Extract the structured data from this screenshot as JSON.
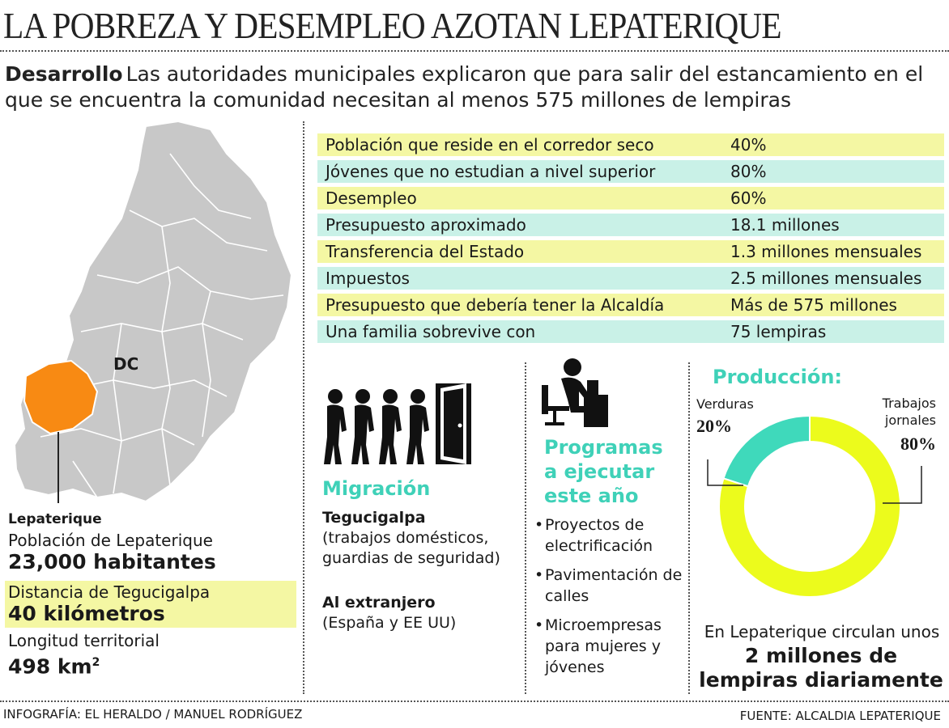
{
  "header": {
    "title": "LA POBREZA Y DESEMPLEO AZOTAN  LEPATERIQUE",
    "lead_label": "Desarrollo",
    "lead_text": "Las autoridades municipales explicaron que para salir del estancamiento en el que se encuentra la comunidad necesitan al menos 575 millones de lempiras"
  },
  "map": {
    "dc_label": "DC",
    "highlight_color": "#f88a13",
    "base_color": "#c8c8c8"
  },
  "left_info": {
    "municipality": "Lepaterique",
    "population_label": "Población de Lepaterique",
    "population_value": "23,000 habitantes",
    "distance_label": "Distancia de Tegucigalpa",
    "distance_value": "40 kilómetros",
    "length_label": "Longitud territorial",
    "length_value": "498 km",
    "length_unit_sup": "2"
  },
  "stats": [
    {
      "label": "Población que reside en el corredor seco",
      "value": "40%"
    },
    {
      "label": "Jóvenes que no estudian a nivel superior",
      "value": "80%"
    },
    {
      "label": "Desempleo",
      "value": "60%"
    },
    {
      "label": "Presupuesto aproximado",
      "value": "18.1 millones"
    },
    {
      "label": "Transferencia del Estado",
      "value": "1.3 millones mensuales"
    },
    {
      "label": "Impuestos",
      "value": "2.5 millones mensuales"
    },
    {
      "label": "Presupuesto que debería tener la Alcaldía",
      "value": "Más de 575 millones"
    },
    {
      "label": "Una familia sobrevive con",
      "value": "75 lempiras"
    }
  ],
  "migration": {
    "title": "Migración",
    "dest1": "Tegucigalpa",
    "dest1_detail": "(trabajos domésticos, guardias de seguridad)",
    "dest2": "Al extranjero",
    "dest2_detail": "(España y EE UU)"
  },
  "programs": {
    "title": "Programas a ejecutar este año",
    "items": [
      "Proyectos de electrificación",
      "Pavimentación de calles",
      "Microempresas para mujeres y jóvenes"
    ]
  },
  "production": {
    "title": "Producción:",
    "verduras_label": "Verduras",
    "verduras_pct": "20%",
    "trabajos_label": "Trabajos jornales",
    "trabajos_pct": "80%",
    "circulation_text": "En Lepaterique circulan unos",
    "circulation_value": "2 millones de lempiras diariamente"
  },
  "chart_data": {
    "type": "pie",
    "categories": [
      "Verduras",
      "Trabajos jornales"
    ],
    "values": [
      20,
      80
    ],
    "colors": [
      "#3fd9bb",
      "#ecfb1c"
    ],
    "title": "Producción:"
  },
  "footer": {
    "credit": "INFOGRAFÍA: EL HERALDO / MANUEL RODRÍGUEZ",
    "source": "FUENTE: ALCALDIA LEPATERIQUE"
  },
  "colors": {
    "accent_teal": "#3fd1b8",
    "row_yellow": "#f4f7a3",
    "row_cyan": "#c9f1e7"
  }
}
